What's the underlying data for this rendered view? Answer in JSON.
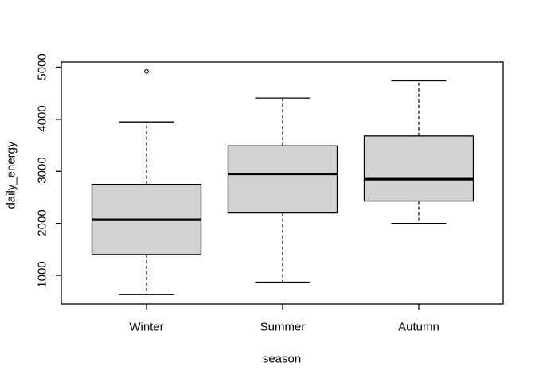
{
  "figure": {
    "background": "#ffffff",
    "box_fill": "#d3d3d3",
    "line_color": "#000000",
    "outlier_fill": "#ffffff"
  },
  "chart_data": {
    "type": "boxplot",
    "title": "",
    "xlabel": "season",
    "ylabel": "daily_energy",
    "categories": [
      "Winter",
      "Summer",
      "Autumn"
    ],
    "yticks": [
      "1000",
      "2000",
      "3000",
      "4000",
      "5000"
    ],
    "ylim": [
      450,
      5100
    ],
    "grid": false,
    "legend": null,
    "series": [
      {
        "name": "Winter",
        "whisker_low": 630,
        "q1": 1400,
        "median": 2070,
        "q3": 2750,
        "whisker_high": 3950,
        "outliers": [
          4920
        ]
      },
      {
        "name": "Summer",
        "whisker_low": 870,
        "q1": 2200,
        "median": 2950,
        "q3": 3490,
        "whisker_high": 4410,
        "outliers": []
      },
      {
        "name": "Autumn",
        "whisker_low": 2000,
        "q1": 2430,
        "median": 2850,
        "q3": 3680,
        "whisker_high": 4740,
        "outliers": []
      }
    ]
  }
}
